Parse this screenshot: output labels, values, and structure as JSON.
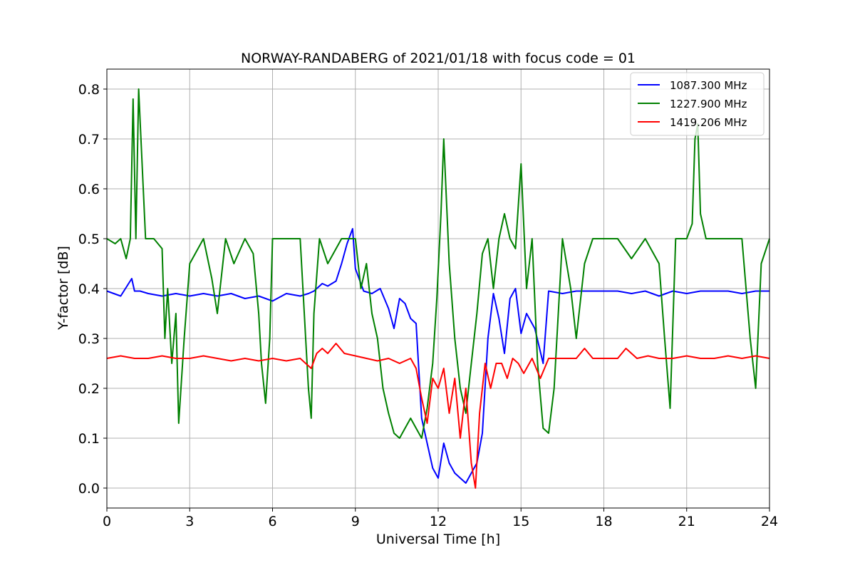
{
  "chart_data": {
    "type": "line",
    "title": "NORWAY-RANDABERG of 2021/01/18 with focus code = 01",
    "xlabel": "Universal Time [h]",
    "ylabel": "Y-factor [dB]",
    "xlim": [
      0,
      24
    ],
    "ylim": [
      -0.04,
      0.84
    ],
    "xticks": [
      0,
      3,
      6,
      9,
      12,
      15,
      18,
      21,
      24
    ],
    "yticks": [
      0.0,
      0.1,
      0.2,
      0.3,
      0.4,
      0.5,
      0.6,
      0.7,
      0.8
    ],
    "grid": true,
    "legend_position": "top-right",
    "series": [
      {
        "name": "1087.300 MHz",
        "color": "#0000ff",
        "x": [
          0,
          0.5,
          0.9,
          1.0,
          1.2,
          1.5,
          2.0,
          2.5,
          3.0,
          3.5,
          4.0,
          4.5,
          5.0,
          5.5,
          6.0,
          6.5,
          7.0,
          7.3,
          7.5,
          7.8,
          8.0,
          8.3,
          8.5,
          8.7,
          8.9,
          9.0,
          9.3,
          9.6,
          9.9,
          10.2,
          10.4,
          10.6,
          10.8,
          11.0,
          11.2,
          11.4,
          11.6,
          11.8,
          12.0,
          12.2,
          12.4,
          12.6,
          12.8,
          13.0,
          13.2,
          13.4,
          13.6,
          13.8,
          14.0,
          14.2,
          14.4,
          14.6,
          14.8,
          15.0,
          15.2,
          15.5,
          15.8,
          16.0,
          16.5,
          17.0,
          17.5,
          18.0,
          18.5,
          19.0,
          19.5,
          20.0,
          20.5,
          21.0,
          21.5,
          22.0,
          22.5,
          23.0,
          23.5,
          24.0
        ],
        "values": [
          0.395,
          0.385,
          0.42,
          0.395,
          0.395,
          0.39,
          0.385,
          0.39,
          0.385,
          0.39,
          0.385,
          0.39,
          0.38,
          0.385,
          0.375,
          0.39,
          0.385,
          0.39,
          0.395,
          0.41,
          0.405,
          0.415,
          0.45,
          0.49,
          0.52,
          0.44,
          0.395,
          0.39,
          0.4,
          0.36,
          0.32,
          0.38,
          0.37,
          0.34,
          0.33,
          0.14,
          0.09,
          0.04,
          0.02,
          0.09,
          0.05,
          0.03,
          0.02,
          0.01,
          0.03,
          0.05,
          0.11,
          0.3,
          0.39,
          0.34,
          0.27,
          0.38,
          0.4,
          0.31,
          0.35,
          0.32,
          0.25,
          0.395,
          0.39,
          0.395,
          0.395,
          0.395,
          0.395,
          0.39,
          0.395,
          0.385,
          0.395,
          0.39,
          0.395,
          0.395,
          0.395,
          0.39,
          0.395,
          0.395
        ]
      },
      {
        "name": "1227.900 MHz",
        "color": "#008000",
        "x": [
          0,
          0.3,
          0.5,
          0.7,
          0.85,
          0.95,
          1.05,
          1.15,
          1.4,
          1.7,
          2.0,
          2.1,
          2.2,
          2.35,
          2.5,
          2.6,
          2.8,
          3.0,
          3.5,
          3.8,
          4.0,
          4.3,
          4.6,
          5.0,
          5.3,
          5.5,
          5.6,
          5.75,
          5.9,
          6.0,
          6.5,
          7.0,
          7.2,
          7.3,
          7.4,
          7.5,
          7.7,
          8.0,
          8.5,
          9.0,
          9.2,
          9.4,
          9.6,
          9.8,
          10.0,
          10.2,
          10.4,
          10.6,
          10.8,
          11.0,
          11.2,
          11.4,
          11.6,
          11.8,
          11.95,
          12.1,
          12.2,
          12.4,
          12.6,
          12.8,
          13.0,
          13.2,
          13.4,
          13.6,
          13.8,
          14.0,
          14.2,
          14.4,
          14.6,
          14.8,
          15.0,
          15.2,
          15.4,
          15.6,
          15.8,
          16.0,
          16.2,
          16.5,
          16.8,
          17.0,
          17.3,
          17.6,
          18.0,
          18.5,
          19.0,
          19.5,
          20.0,
          20.2,
          20.4,
          20.6,
          21.0,
          21.2,
          21.3,
          21.4,
          21.5,
          21.7,
          22.0,
          22.5,
          23.0,
          23.3,
          23.5,
          23.7,
          24.0
        ],
        "values": [
          0.5,
          0.49,
          0.5,
          0.46,
          0.5,
          0.78,
          0.5,
          0.8,
          0.5,
          0.5,
          0.48,
          0.3,
          0.4,
          0.25,
          0.35,
          0.13,
          0.3,
          0.45,
          0.5,
          0.42,
          0.35,
          0.5,
          0.45,
          0.5,
          0.47,
          0.35,
          0.25,
          0.17,
          0.3,
          0.5,
          0.5,
          0.5,
          0.3,
          0.2,
          0.14,
          0.35,
          0.5,
          0.45,
          0.5,
          0.5,
          0.4,
          0.45,
          0.35,
          0.3,
          0.2,
          0.15,
          0.11,
          0.1,
          0.12,
          0.14,
          0.12,
          0.1,
          0.16,
          0.25,
          0.38,
          0.55,
          0.7,
          0.45,
          0.3,
          0.2,
          0.15,
          0.25,
          0.35,
          0.47,
          0.5,
          0.4,
          0.5,
          0.55,
          0.5,
          0.48,
          0.65,
          0.4,
          0.5,
          0.25,
          0.12,
          0.11,
          0.2,
          0.5,
          0.4,
          0.3,
          0.45,
          0.5,
          0.5,
          0.5,
          0.46,
          0.5,
          0.45,
          0.3,
          0.16,
          0.5,
          0.5,
          0.53,
          0.7,
          0.73,
          0.55,
          0.5,
          0.5,
          0.5,
          0.5,
          0.3,
          0.2,
          0.45,
          0.5
        ]
      },
      {
        "name": "1419.206 MHz",
        "color": "#ff0000",
        "x": [
          0,
          0.5,
          1.0,
          1.5,
          2.0,
          2.5,
          3.0,
          3.5,
          4.0,
          4.5,
          5.0,
          5.5,
          6.0,
          6.5,
          7.0,
          7.2,
          7.4,
          7.6,
          7.8,
          8.0,
          8.3,
          8.6,
          9.0,
          9.4,
          9.8,
          10.2,
          10.6,
          11.0,
          11.2,
          11.4,
          11.6,
          11.8,
          12.0,
          12.2,
          12.4,
          12.6,
          12.8,
          13.0,
          13.2,
          13.35,
          13.5,
          13.7,
          13.9,
          14.1,
          14.3,
          14.5,
          14.7,
          14.9,
          15.1,
          15.4,
          15.7,
          16.0,
          16.5,
          17.0,
          17.3,
          17.6,
          18.0,
          18.5,
          18.8,
          19.2,
          19.6,
          20.0,
          20.5,
          21.0,
          21.5,
          22.0,
          22.5,
          23.0,
          23.5,
          24.0
        ],
        "values": [
          0.26,
          0.265,
          0.26,
          0.26,
          0.265,
          0.26,
          0.26,
          0.265,
          0.26,
          0.255,
          0.26,
          0.255,
          0.26,
          0.255,
          0.26,
          0.25,
          0.24,
          0.27,
          0.28,
          0.27,
          0.29,
          0.27,
          0.265,
          0.26,
          0.255,
          0.26,
          0.25,
          0.26,
          0.24,
          0.18,
          0.13,
          0.22,
          0.2,
          0.24,
          0.15,
          0.22,
          0.1,
          0.2,
          0.05,
          0.0,
          0.15,
          0.25,
          0.2,
          0.25,
          0.25,
          0.22,
          0.26,
          0.25,
          0.23,
          0.26,
          0.22,
          0.26,
          0.26,
          0.26,
          0.28,
          0.26,
          0.26,
          0.26,
          0.28,
          0.26,
          0.265,
          0.26,
          0.26,
          0.265,
          0.26,
          0.26,
          0.265,
          0.26,
          0.265,
          0.26
        ]
      }
    ]
  }
}
